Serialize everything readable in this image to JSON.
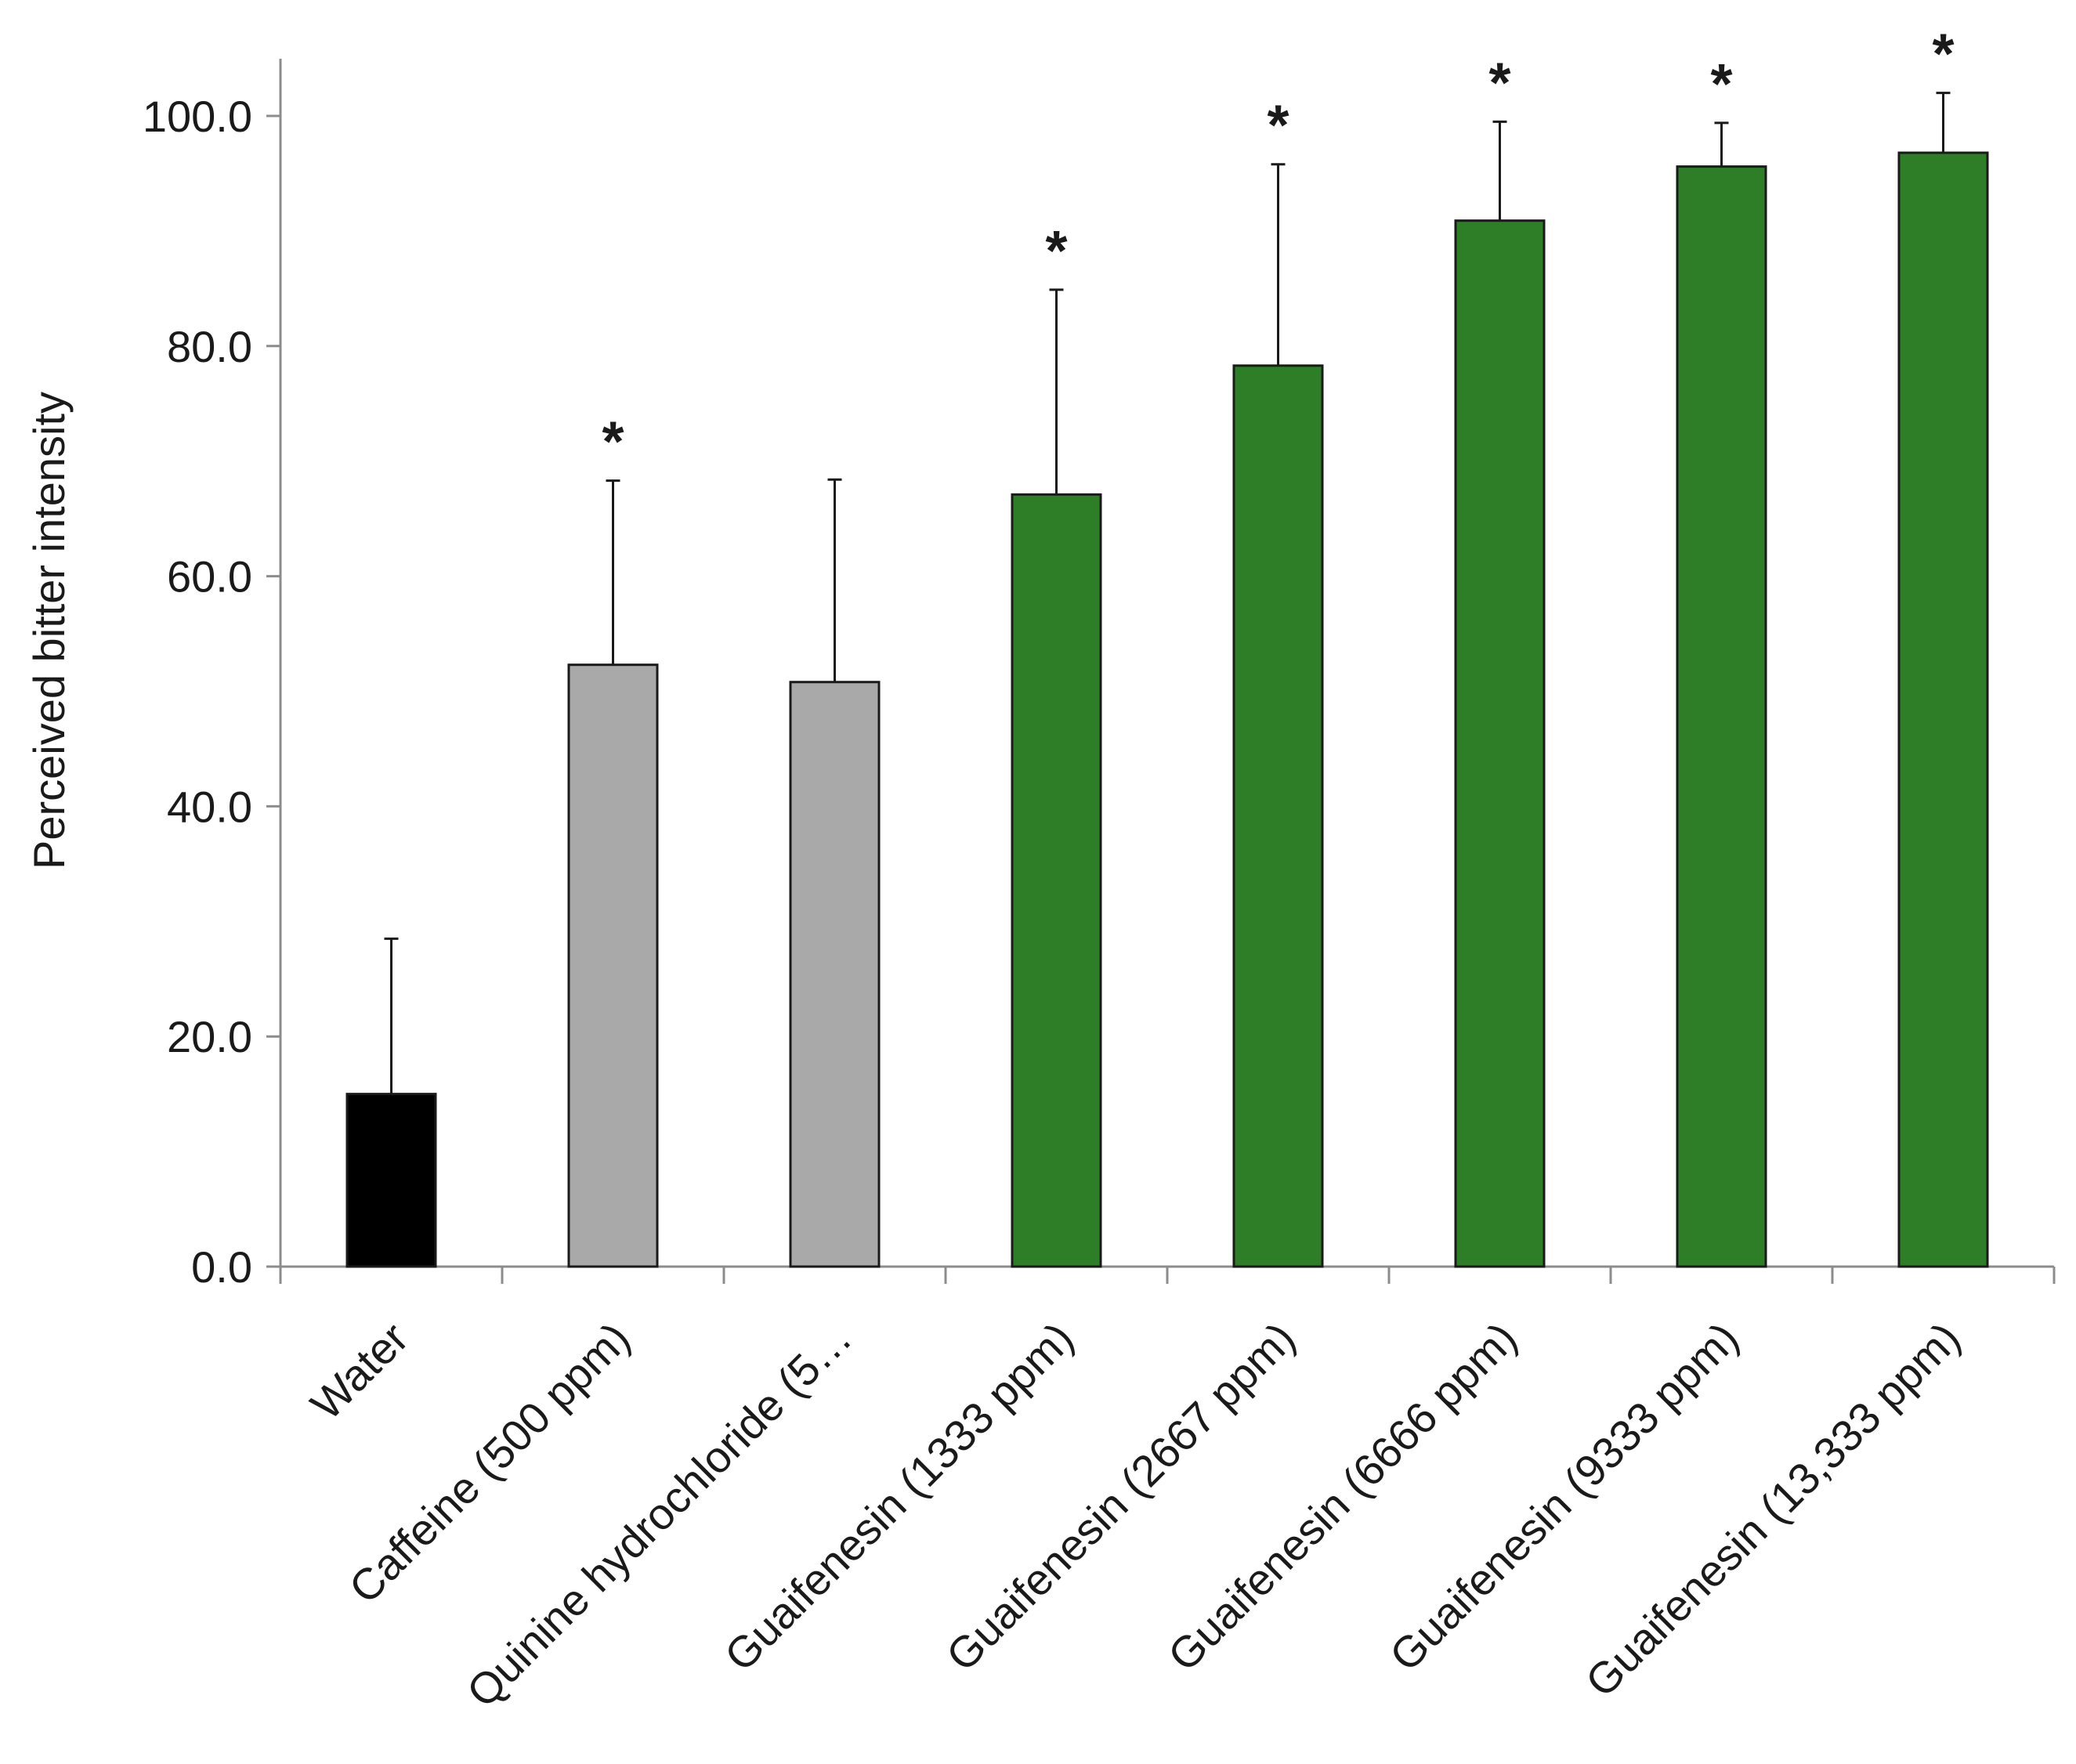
{
  "chart_data": {
    "type": "bar",
    "title": "",
    "xlabel": "",
    "ylabel": "Perceived bitter intensity",
    "ylim": [
      0,
      100
    ],
    "yticks": [
      0,
      20,
      40,
      60,
      80,
      100
    ],
    "ytick_labels": [
      "0.0",
      "20.0",
      "40.0",
      "60.0",
      "80.0",
      "100.0"
    ],
    "grid": false,
    "legend": "none",
    "categories": [
      "Water",
      "Caffeine (500 ppm)",
      "Quinine hydrochloride (5…",
      "Guaifenesin (1333 ppm)",
      "Guaifenesin (2667 ppm)",
      "Guaifenesin (6666 ppm)",
      "Guaifenesin (9333 ppm)",
      "Guaifenesin (13,333 ppm)"
    ],
    "values": [
      15.0,
      52.3,
      50.8,
      67.1,
      78.3,
      90.9,
      95.6,
      96.8
    ],
    "error_upper": [
      13.5,
      16.0,
      17.6,
      17.8,
      17.5,
      8.6,
      3.8,
      5.2
    ],
    "significant": [
      false,
      true,
      false,
      true,
      true,
      true,
      true,
      true
    ],
    "significance_marker": "*",
    "colors": [
      "#000000",
      "#a9a9a9",
      "#a9a9a9",
      "#2e7d27",
      "#2e7d27",
      "#2e7d27",
      "#2e7d27",
      "#2e7d27"
    ]
  }
}
